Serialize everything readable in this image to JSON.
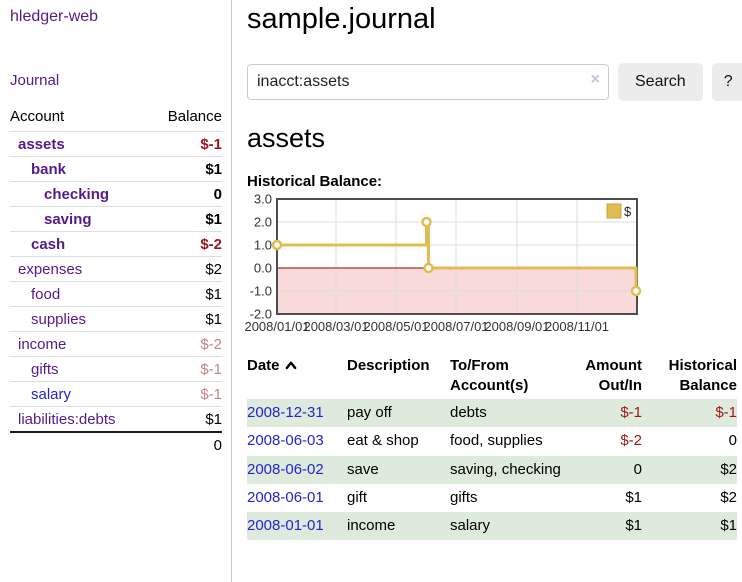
{
  "app": {
    "title": "hledger-web"
  },
  "colors": {
    "link_purple": "#551a8b",
    "link_blue": "#2424d0",
    "negative_red": "#9e1616",
    "negative_muted_red": "#c28686",
    "row_stripe_green": "#deeadb",
    "chart_line_gold": "#e2bc52",
    "button_gray": "#ececec"
  },
  "sidebar": {
    "journal_label": "Journal",
    "accounts": {
      "headers": [
        "Account",
        "Balance"
      ],
      "rows": [
        {
          "account": "assets",
          "balance": "$-1",
          "level": 0,
          "bold": true,
          "tone": "neg"
        },
        {
          "account": "bank",
          "balance": "$1",
          "level": 1,
          "bold": true
        },
        {
          "account": "checking",
          "balance": "0",
          "level": 2,
          "bold": true
        },
        {
          "account": "saving",
          "balance": "$1",
          "level": 2,
          "bold": true
        },
        {
          "account": "cash",
          "balance": "$-2",
          "level": 1,
          "bold": true,
          "tone": "neg"
        },
        {
          "account": "expenses",
          "balance": "$2",
          "level": 0
        },
        {
          "account": "food",
          "balance": "$1",
          "level": 1
        },
        {
          "account": "supplies",
          "balance": "$1",
          "level": 1
        },
        {
          "account": "income",
          "balance": "$-2",
          "level": 0,
          "tone": "mut"
        },
        {
          "account": "gifts",
          "balance": "$-1",
          "level": 1,
          "tone": "mut"
        },
        {
          "account": "salary",
          "balance": "$-1",
          "level": 1,
          "tone": "mut",
          "link": "blue"
        },
        {
          "account": "liabilities:debts",
          "balance": "$1",
          "level": 0
        }
      ],
      "total": "0"
    }
  },
  "main": {
    "title": "sample.journal",
    "search": {
      "value": "inacct:assets",
      "clear_icon": "×",
      "search_button": "Search",
      "help_button": "?"
    },
    "account_heading": "assets",
    "chart_heading": "Historical Balance:"
  },
  "chart_data": {
    "type": "line",
    "step": true,
    "title": "Historical Balance",
    "legend": {
      "label": "$",
      "position": "top-right"
    },
    "x_range": [
      "2008-01-01",
      "2009-01-01"
    ],
    "x_ticks": [
      "2008/01/01",
      "2008/03/01",
      "2008/05/01",
      "2008/07/01",
      "2008/09/01",
      "2008/11/01"
    ],
    "y_ticks": [
      3.0,
      2.0,
      1.0,
      0.0,
      -1.0,
      -2.0
    ],
    "ylim": [
      -2,
      3
    ],
    "grid": true,
    "series": [
      {
        "name": "$",
        "color": "#e2bc52",
        "points": [
          {
            "date": "2008-01-01",
            "value": 1
          },
          {
            "date": "2008-06-01",
            "value": 2
          },
          {
            "date": "2008-06-03",
            "value": 0
          },
          {
            "date": "2008-12-31",
            "value": -1
          }
        ]
      }
    ],
    "negative_region_color": "#f9dada",
    "zero_line_color": "#8b0000"
  },
  "register": {
    "headers": [
      "Date",
      "Description",
      "To/From Account(s)",
      "Amount Out/In",
      "Historical Balance"
    ],
    "sort": {
      "column": "Date",
      "direction": "ascending"
    },
    "rows": [
      {
        "date": "2008-12-31",
        "description": "pay off",
        "accounts": "debts",
        "amount": "$-1",
        "amount_negative": true,
        "balance": "$-1",
        "balance_negative": true
      },
      {
        "date": "2008-06-03",
        "description": "eat & shop",
        "accounts": "food, supplies",
        "amount": "$-2",
        "amount_negative": true,
        "balance": "0",
        "balance_negative": false
      },
      {
        "date": "2008-06-02",
        "description": "save",
        "accounts": "saving, checking",
        "amount": "0",
        "amount_negative": false,
        "balance": "$2",
        "balance_negative": false
      },
      {
        "date": "2008-06-01",
        "description": "gift",
        "accounts": "gifts",
        "amount": "$1",
        "amount_negative": false,
        "balance": "$2",
        "balance_negative": false
      },
      {
        "date": "2008-01-01",
        "description": "income",
        "accounts": "salary",
        "amount": "$1",
        "amount_negative": false,
        "balance": "$1",
        "balance_negative": false
      }
    ]
  }
}
